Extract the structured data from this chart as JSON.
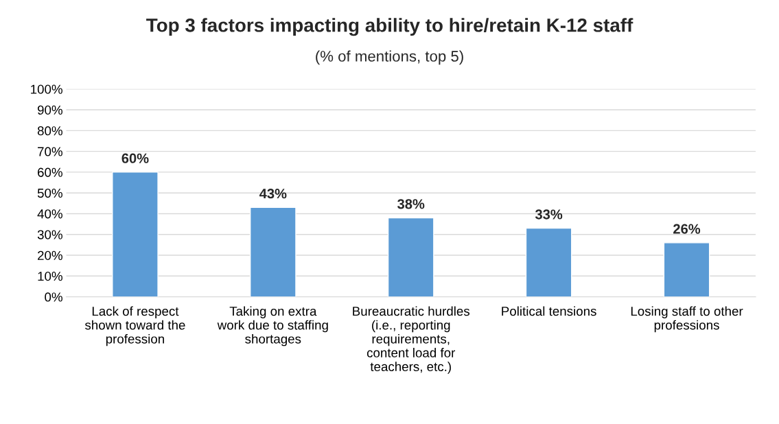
{
  "chart_data": {
    "type": "bar",
    "title": "Top 3 factors impacting ability to hire/retain K-12 staff",
    "subtitle": "(% of mentions, top 5)",
    "categories": [
      "Lack of respect\nshown toward the\nprofession",
      "Taking on extra\nwork due to staffing\nshortages",
      "Bureaucratic hurdles\n(i.e., reporting\nrequirements,\ncontent load for\nteachers, etc.)",
      "Political tensions",
      "Losing staff to other\nprofessions"
    ],
    "values": [
      60,
      43,
      38,
      33,
      26
    ],
    "value_labels": [
      "60%",
      "43%",
      "38%",
      "33%",
      "26%"
    ],
    "color": "#5b9bd5",
    "ylim": [
      0,
      100
    ],
    "yticks": [
      {
        "value": 0,
        "label": "0%"
      },
      {
        "value": 10,
        "label": "10%"
      },
      {
        "value": 20,
        "label": "20%"
      },
      {
        "value": 30,
        "label": "30%"
      },
      {
        "value": 40,
        "label": "40%"
      },
      {
        "value": 50,
        "label": "50%"
      },
      {
        "value": 60,
        "label": "60%"
      },
      {
        "value": 70,
        "label": "70%"
      },
      {
        "value": 80,
        "label": "80%"
      },
      {
        "value": 90,
        "label": "90%"
      },
      {
        "value": 100,
        "label": "100%"
      }
    ],
    "grid": "y"
  }
}
